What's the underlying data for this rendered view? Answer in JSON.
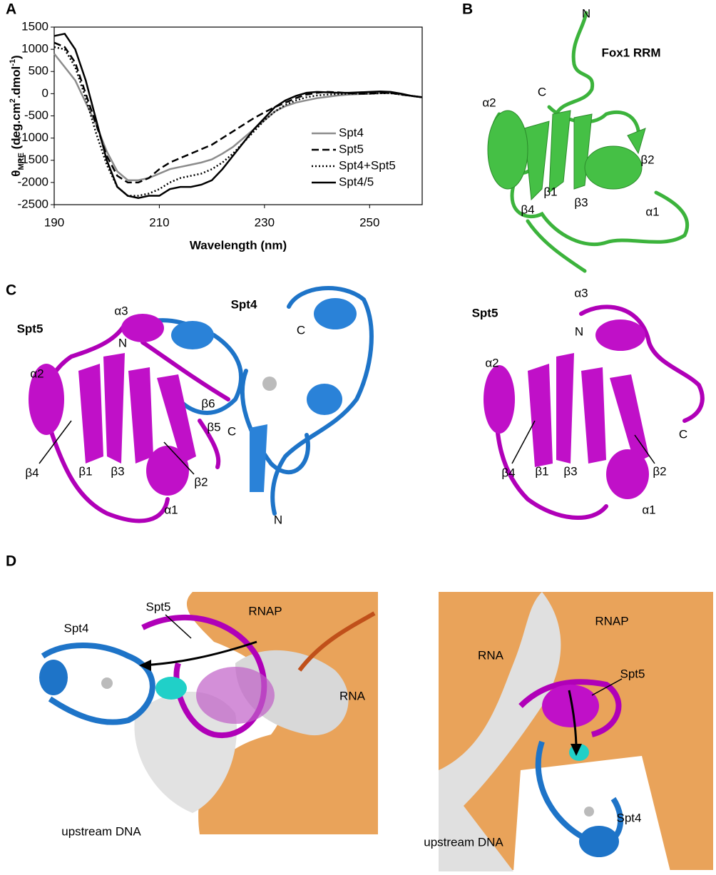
{
  "panel_letters": [
    "A",
    "B",
    "C",
    "D"
  ],
  "chart_data": {
    "type": "line",
    "x_label": "Wavelength (nm)",
    "y_label": [
      "θ",
      "MRE",
      " (deg.cm",
      "2",
      ".dmol",
      "-1",
      ")"
    ],
    "x": [
      190,
      192,
      194,
      196,
      198,
      200,
      202,
      204,
      206,
      208,
      210,
      212,
      214,
      216,
      218,
      220,
      222,
      224,
      226,
      228,
      230,
      232,
      234,
      236,
      238,
      240,
      242,
      244,
      246,
      248,
      250,
      252,
      254,
      256,
      258,
      260
    ],
    "xlim": [
      190,
      260
    ],
    "xticks": [
      190,
      210,
      230,
      250
    ],
    "ylim": [
      -2500,
      1500
    ],
    "yticks": [
      -2500,
      -2000,
      -1500,
      -1000,
      -500,
      0,
      500,
      1000,
      1500
    ],
    "legend": "lower right",
    "series": [
      {
        "name": "Spt4",
        "color": "#8c8c8c",
        "dash": "solid",
        "values": [
          900,
          600,
          300,
          -200,
          -700,
          -1300,
          -1750,
          -1950,
          -1950,
          -1900,
          -1800,
          -1700,
          -1650,
          -1600,
          -1550,
          -1480,
          -1350,
          -1200,
          -1000,
          -800,
          -600,
          -400,
          -280,
          -200,
          -150,
          -100,
          -70,
          -40,
          -20,
          -10,
          0,
          10,
          10,
          -20,
          -50,
          -80
        ]
      },
      {
        "name": "Spt5",
        "color": "#000000",
        "dash": "dashed",
        "values": [
          1150,
          1050,
          700,
          0,
          -700,
          -1400,
          -1850,
          -2000,
          -2000,
          -1900,
          -1700,
          -1550,
          -1450,
          -1350,
          -1250,
          -1150,
          -1000,
          -850,
          -700,
          -550,
          -420,
          -300,
          -200,
          -100,
          -20,
          20,
          40,
          30,
          10,
          0,
          0,
          20,
          20,
          -20,
          -50,
          -80
        ]
      },
      {
        "name": "Spt4+Spt5",
        "color": "#000000",
        "dash": "dotted",
        "values": [
          1050,
          1000,
          600,
          -100,
          -900,
          -1600,
          -2100,
          -2300,
          -2300,
          -2250,
          -2150,
          -2000,
          -1900,
          -1850,
          -1800,
          -1700,
          -1550,
          -1350,
          -1100,
          -850,
          -600,
          -400,
          -250,
          -150,
          -80,
          -40,
          -20,
          -10,
          0,
          0,
          0,
          10,
          10,
          -20,
          -50,
          -80
        ]
      },
      {
        "name": "Spt4/5",
        "color": "#000000",
        "dash": "solid",
        "values": [
          1300,
          1350,
          1000,
          300,
          -600,
          -1500,
          -2100,
          -2300,
          -2350,
          -2300,
          -2300,
          -2150,
          -2100,
          -2100,
          -2050,
          -1950,
          -1700,
          -1400,
          -1100,
          -800,
          -550,
          -300,
          -150,
          -50,
          20,
          40,
          30,
          20,
          20,
          30,
          40,
          50,
          40,
          0,
          -50,
          -80
        ]
      }
    ]
  },
  "panel_b": {
    "labels": [
      "N",
      "C",
      "Fox1 RRM",
      "α2",
      "β2",
      "β1",
      "β3",
      "α1",
      "β4"
    ]
  },
  "panel_c_left": {
    "labels": [
      "Spt5",
      "α3",
      "Spt4",
      "C",
      "N",
      "α2",
      "β6",
      "C",
      "β5",
      "β4",
      "β1",
      "β3",
      "β2",
      "α1",
      "N"
    ]
  },
  "panel_c_right": {
    "labels": [
      "Spt5",
      "α3",
      "N",
      "α2",
      "C",
      "β4",
      "β1",
      "β3",
      "β2",
      "α1"
    ]
  },
  "panel_d_left": {
    "labels": [
      "Spt5",
      "RNAP",
      "Spt4",
      "RNA",
      "upstream DNA"
    ]
  },
  "panel_d_right": {
    "labels": [
      "RNAP",
      "RNA",
      "Spt5",
      "Spt4",
      "upstream DNA"
    ]
  }
}
